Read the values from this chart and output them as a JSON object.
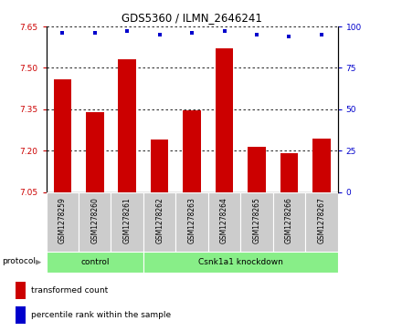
{
  "title": "GDS5360 / ILMN_2646241",
  "samples": [
    "GSM1278259",
    "GSM1278260",
    "GSM1278261",
    "GSM1278262",
    "GSM1278263",
    "GSM1278264",
    "GSM1278265",
    "GSM1278266",
    "GSM1278267"
  ],
  "transformed_counts": [
    7.46,
    7.34,
    7.53,
    7.24,
    7.345,
    7.57,
    7.215,
    7.19,
    7.245
  ],
  "percentile_ranks": [
    96,
    96,
    97,
    95,
    96,
    97,
    95,
    94,
    95
  ],
  "ylim_left": [
    7.05,
    7.65
  ],
  "ylim_right": [
    0,
    100
  ],
  "yticks_left": [
    7.05,
    7.2,
    7.35,
    7.5,
    7.65
  ],
  "yticks_right": [
    0,
    25,
    50,
    75,
    100
  ],
  "bar_color": "#cc0000",
  "dot_color": "#0000cc",
  "grid_color": "#000000",
  "bg_color": "#ffffff",
  "tick_area_color": "#cccccc",
  "control_color": "#88ee88",
  "knockdown_color": "#88ee88",
  "control_label": "control",
  "knockdown_label": "Csnk1a1 knockdown",
  "protocol_label": "protocol",
  "control_indices": [
    0,
    1,
    2
  ],
  "knockdown_indices": [
    3,
    4,
    5,
    6,
    7,
    8
  ],
  "legend_tc": "transformed count",
  "legend_pr": "percentile rank within the sample",
  "bar_width": 0.55
}
